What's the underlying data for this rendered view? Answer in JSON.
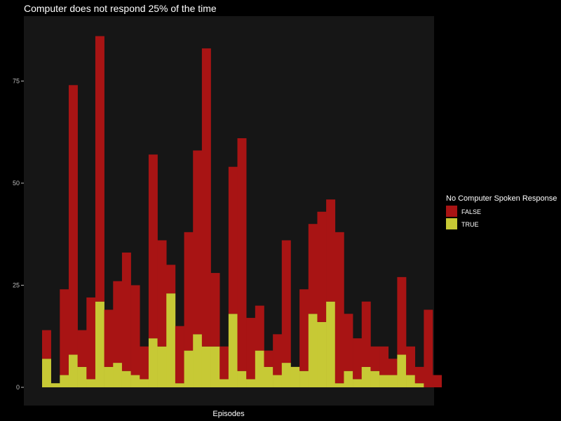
{
  "chart_data": {
    "type": "bar",
    "stacked": true,
    "title": "Computer does not respond 25% of the time",
    "xlabel": "Episodes",
    "ylabel": "",
    "ylim": [
      0,
      90
    ],
    "yticks": [
      0,
      25,
      50,
      75
    ],
    "grid": false,
    "legend": {
      "title": "No Computer Spoken Response",
      "position": "right"
    },
    "colors": {
      "background": "#000000",
      "panel": "#161616",
      "tick_line": "#bdbdbd"
    },
    "series": [
      {
        "name": "FALSE",
        "color": "#a81414",
        "values": [
          7,
          0,
          21,
          66,
          9,
          20,
          65,
          14,
          20,
          29,
          22,
          8,
          45,
          26,
          7,
          14,
          29,
          45,
          73,
          18,
          8,
          36,
          57,
          15,
          11,
          4,
          10,
          30,
          0,
          20,
          22,
          27,
          25,
          37,
          14,
          10,
          16,
          6,
          7,
          4,
          19,
          7,
          4,
          19,
          3
        ],
        "labels": [
          "",
          "",
          "",
          "",
          "",
          "",
          "",
          "",
          "",
          "",
          "",
          "",
          "",
          "",
          "",
          "",
          "",
          "",
          "",
          "",
          "",
          "",
          "",
          "",
          "",
          "",
          "",
          "",
          "",
          "",
          "",
          "",
          "",
          "",
          "",
          "",
          "",
          "",
          "",
          "",
          "",
          "",
          "",
          "",
          ""
        ]
      },
      {
        "name": "TRUE",
        "color": "#c7c935",
        "values": [
          7,
          1,
          3,
          8,
          5,
          2,
          21,
          5,
          6,
          4,
          3,
          2,
          12,
          10,
          23,
          1,
          9,
          13,
          10,
          10,
          2,
          18,
          4,
          2,
          9,
          5,
          3,
          6,
          5,
          4,
          18,
          16,
          21,
          1,
          4,
          2,
          5,
          4,
          3,
          3,
          8,
          3,
          1,
          0,
          0
        ]
      }
    ]
  }
}
